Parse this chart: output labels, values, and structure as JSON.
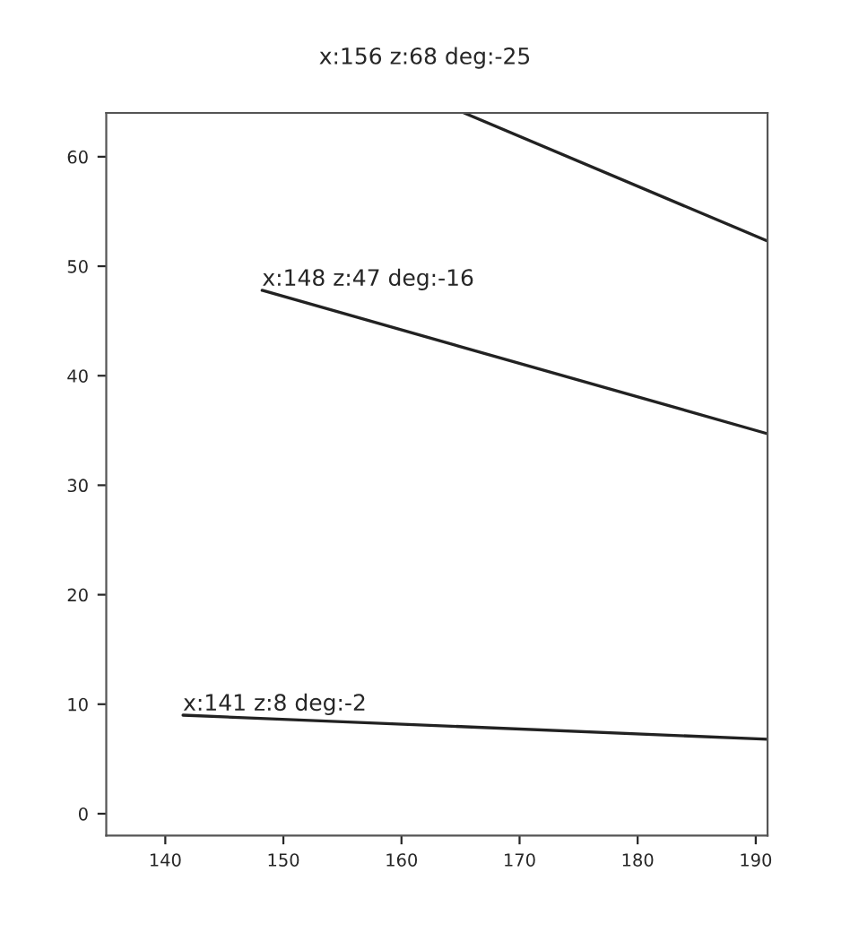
{
  "chart_data": {
    "type": "line",
    "title": "x:156 z:68 deg:-25",
    "series": [
      {
        "color": "#222222",
        "x": [
          165.3,
          191
        ],
        "values": [
          64,
          52.3
        ]
      },
      {
        "color": "#222222",
        "x": [
          148.2,
          191
        ],
        "values": [
          47.8,
          34.7
        ]
      },
      {
        "color": "#222222",
        "x": [
          141.5,
          191
        ],
        "values": [
          9.0,
          6.8
        ]
      }
    ],
    "annotations": [
      {
        "text": "x:148 z:47 deg:-16",
        "x": 148.2,
        "y": 47.8
      },
      {
        "text": "x:141 z:8 deg:-2",
        "x": 141.5,
        "y": 9.0
      }
    ],
    "xlim": [
      135,
      191
    ],
    "ylim": [
      -2,
      64
    ],
    "xticks": [
      140,
      150,
      160,
      170,
      180,
      190
    ],
    "yticks": [
      0,
      10,
      20,
      30,
      40,
      50,
      60
    ],
    "grid": false
  }
}
